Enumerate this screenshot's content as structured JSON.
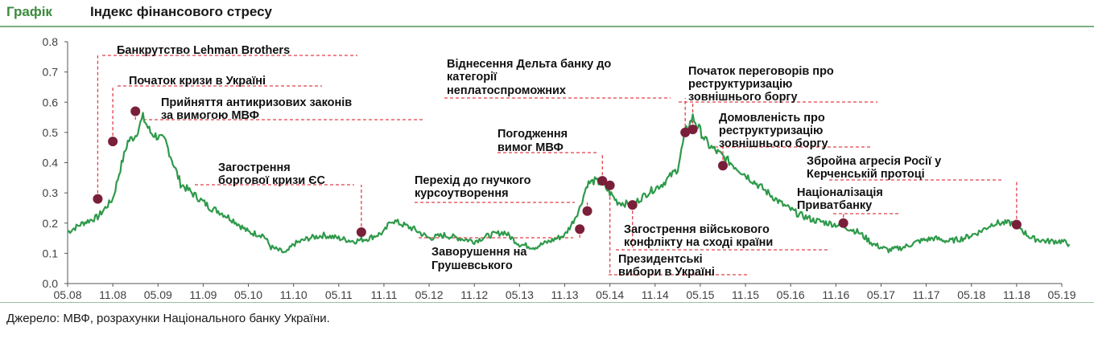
{
  "header": {
    "prefix": "Графік",
    "title": "Індекс фінансового стресу"
  },
  "source": "Джерело: МВФ, розрахунки Національного банку України.",
  "colors": {
    "line": "#2e9a4a",
    "annotation": "#e0404a",
    "marker": "#7a1f3a",
    "axis": "#555555"
  },
  "chart_data": {
    "type": "line",
    "title": "Індекс фінансового стресу",
    "xlabel": "",
    "ylabel": "",
    "ylim": [
      0.0,
      0.8
    ],
    "grid": false,
    "x_tick_labels": [
      "05.08",
      "11.08",
      "05.09",
      "11.09",
      "05.10",
      "11.10",
      "05.11",
      "11.11",
      "05.12",
      "11.12",
      "05.13",
      "11.13",
      "05.14",
      "11.14",
      "05.15",
      "11.15",
      "05.16",
      "11.16",
      "05.17",
      "11.17",
      "05.18",
      "11.18",
      "05.19"
    ],
    "y_tick_labels": [
      "0.0",
      "0.1",
      "0.2",
      "0.3",
      "0.4",
      "0.5",
      "0.6",
      "0.7",
      "0.8"
    ],
    "series": [
      {
        "x": [
          "05.08",
          "07.08",
          "09.08",
          "11.08",
          "12.08",
          "01.09",
          "02.09",
          "03.09",
          "04.09",
          "06.09",
          "08.09",
          "10.09",
          "11.09",
          "12.09",
          "01.10",
          "03.10",
          "05.10",
          "07.10",
          "08.10",
          "10.10",
          "11.10",
          "01.11",
          "03.11",
          "05.11",
          "07.11",
          "09.11",
          "11.11",
          "12.11",
          "01.12",
          "03.12",
          "05.12",
          "07.12",
          "09.12",
          "11.12",
          "01.13",
          "03.13",
          "05.13",
          "07.13",
          "09.13",
          "11.13",
          "12.13",
          "01.14",
          "02.14",
          "03.14",
          "04.14",
          "06.14",
          "08.14",
          "10.14",
          "12.14",
          "02.15",
          "03.15",
          "04.15",
          "06.15",
          "08.15",
          "10.15",
          "12.15",
          "02.16",
          "04.16",
          "06.16",
          "08.16",
          "10.16",
          "12.16",
          "02.17",
          "04.17",
          "06.17",
          "08.17",
          "10.17",
          "12.17",
          "02.18",
          "04.18",
          "06.18",
          "08.18",
          "10.18",
          "11.18",
          "12.18",
          "01.19",
          "03.19",
          "05.19",
          "06.19"
        ],
        "values": [
          0.17,
          0.2,
          0.22,
          0.28,
          0.38,
          0.47,
          0.49,
          0.55,
          0.5,
          0.47,
          0.33,
          0.29,
          0.27,
          0.25,
          0.24,
          0.21,
          0.17,
          0.16,
          0.12,
          0.1,
          0.13,
          0.15,
          0.16,
          0.15,
          0.14,
          0.15,
          0.17,
          0.21,
          0.2,
          0.18,
          0.15,
          0.16,
          0.15,
          0.14,
          0.16,
          0.17,
          0.13,
          0.12,
          0.14,
          0.16,
          0.2,
          0.25,
          0.33,
          0.34,
          0.33,
          0.27,
          0.26,
          0.3,
          0.33,
          0.38,
          0.5,
          0.55,
          0.46,
          0.42,
          0.38,
          0.34,
          0.3,
          0.26,
          0.23,
          0.21,
          0.2,
          0.19,
          0.17,
          0.13,
          0.11,
          0.12,
          0.14,
          0.15,
          0.14,
          0.15,
          0.17,
          0.2,
          0.2,
          0.2,
          0.17,
          0.15,
          0.14,
          0.14,
          0.13
        ]
      }
    ],
    "annotations": [
      {
        "label": "Банкрутство Lehman Brothers",
        "x": "09.08",
        "y": 0.28
      },
      {
        "label": "Початок кризи в Україні",
        "x": "11.08",
        "y": 0.47
      },
      {
        "label": "Прийняття антикризових законів за вимогою МВФ",
        "x": "02.09",
        "y": 0.57
      },
      {
        "label": "Загострення боргової кризи ЄС",
        "x": "08.11",
        "y": 0.17
      },
      {
        "label": "Заворушення на Грушевського",
        "x": "01.14",
        "y": 0.18
      },
      {
        "label": "Перехід до гнучкого курсоутворення",
        "x": "02.14",
        "y": 0.24
      },
      {
        "label": "Погодження вимог МВФ",
        "x": "04.14",
        "y": 0.34
      },
      {
        "label": "Президентські вибори в Україні",
        "x": "05.14",
        "y": 0.325
      },
      {
        "label": "Загострення військового конфлікту на сході країни",
        "x": "08.14",
        "y": 0.26
      },
      {
        "label": "Віднесення Дельта банку до категорії неплатоспроможних",
        "x": "03.15",
        "y": 0.5
      },
      {
        "label": "Початок переговорів про реструктуризацію зовнішнього боргу",
        "x": "04.15",
        "y": 0.51
      },
      {
        "label": "Домовленість про реструктуризацію зовнішнього боргу",
        "x": "08.15",
        "y": 0.39
      },
      {
        "label": "Націоналізація Приватбанку",
        "x": "12.16",
        "y": 0.2
      },
      {
        "label": "Збройна агресія Росії у Керченській протоці",
        "x": "11.18",
        "y": 0.195
      }
    ]
  }
}
